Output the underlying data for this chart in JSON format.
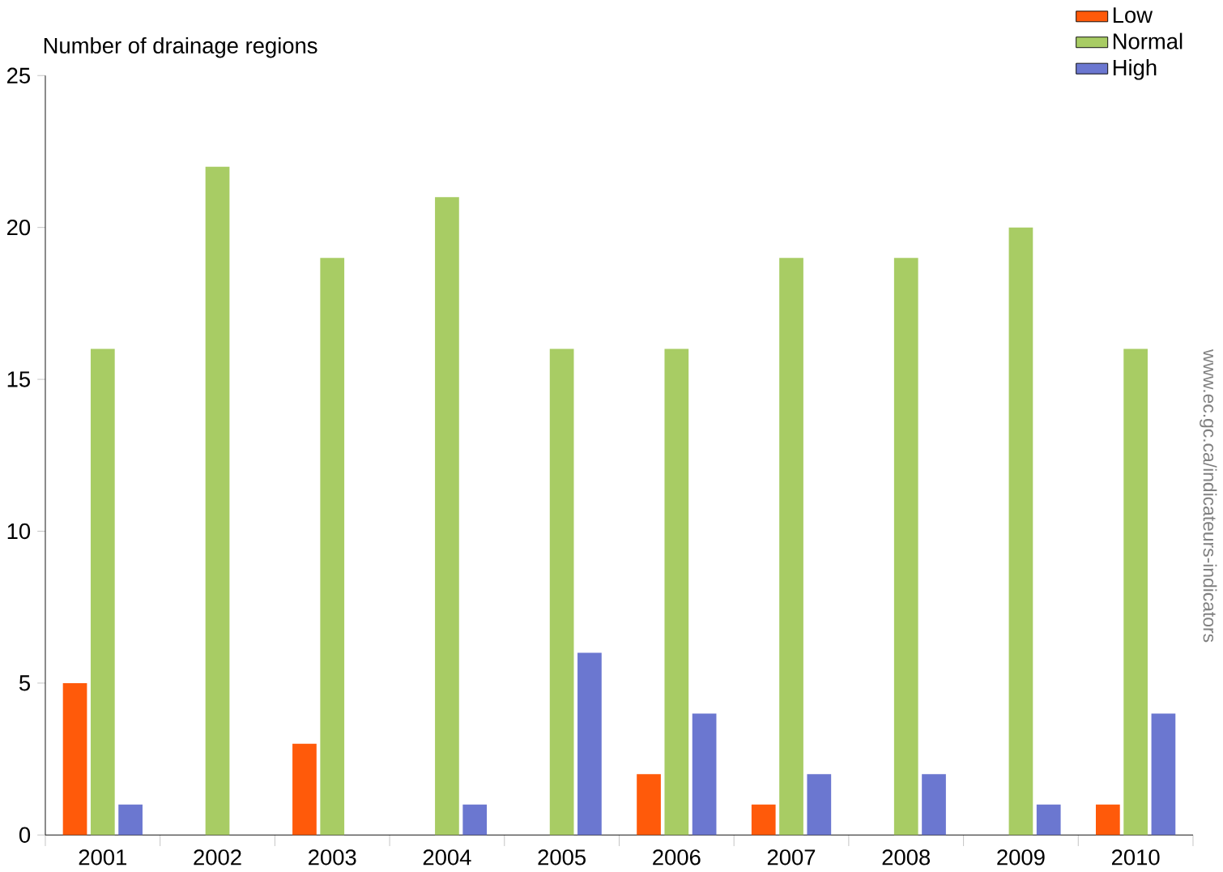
{
  "chart_data": {
    "type": "bar",
    "ylabel": "Number of drainage regions",
    "categories": [
      "2001",
      "2002",
      "2003",
      "2004",
      "2005",
      "2006",
      "2007",
      "2008",
      "2009",
      "2010"
    ],
    "series": [
      {
        "name": "Low",
        "color": "#ff5a0a",
        "values": [
          5,
          0,
          3,
          0,
          0,
          2,
          1,
          0,
          0,
          1
        ]
      },
      {
        "name": "Normal",
        "color": "#a8cc64",
        "values": [
          16,
          22,
          19,
          21,
          16,
          16,
          19,
          19,
          20,
          16
        ]
      },
      {
        "name": "High",
        "color": "#6b77d0",
        "values": [
          1,
          0,
          0,
          1,
          6,
          4,
          2,
          2,
          1,
          4
        ]
      }
    ],
    "ylim": [
      0,
      25
    ],
    "yticks": [
      0,
      5,
      10,
      15,
      20,
      25
    ],
    "grid": false,
    "legend": "top right",
    "annotations": [
      "www.ec.gc.ca/indicateurs-indicators"
    ]
  }
}
